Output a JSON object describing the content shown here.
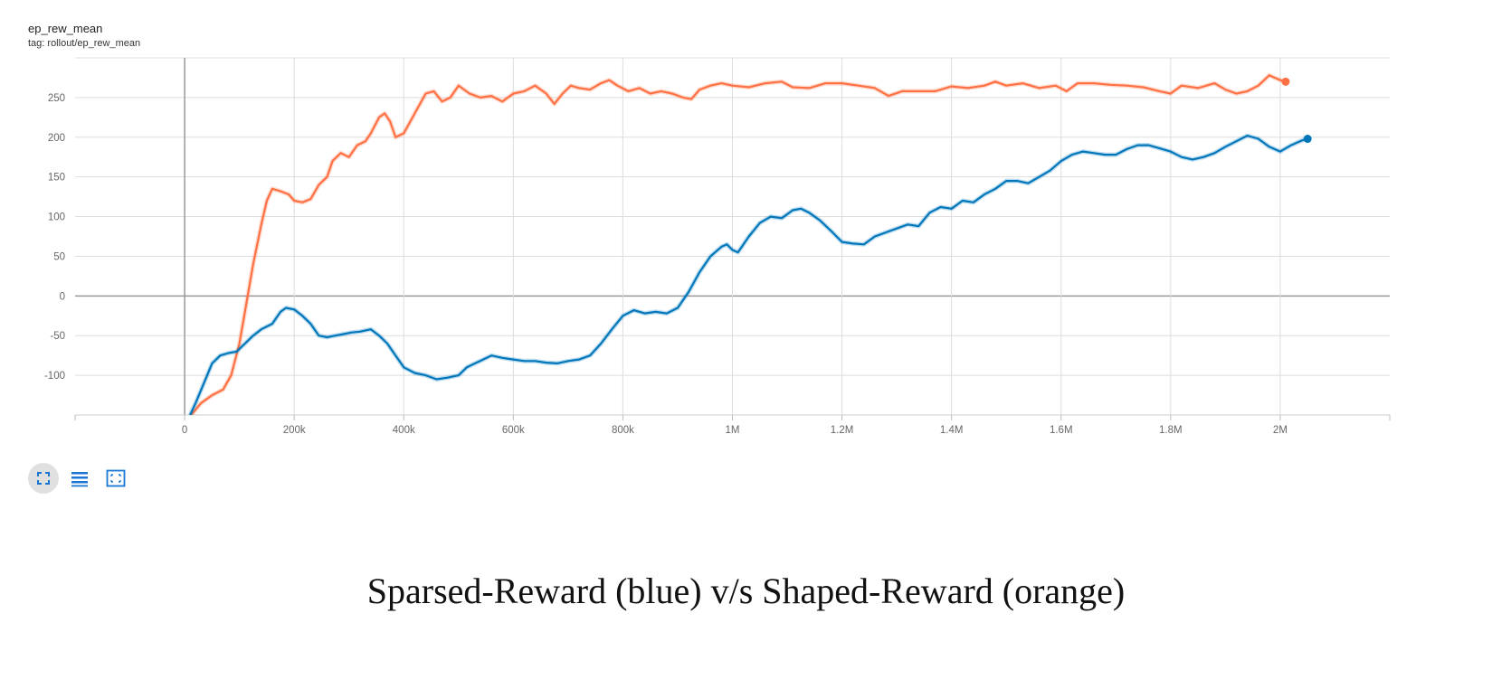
{
  "card": {
    "title": "ep_rew_mean",
    "tag": "tag: rollout/ep_rew_mean"
  },
  "toolbar": {
    "icons": [
      "fullscreen-icon",
      "list-icon",
      "fit-domain-icon"
    ]
  },
  "caption": "Sparsed-Reward (blue) v/s Shaped-Reward (orange)",
  "colors": {
    "orange": "#ff7043",
    "blue": "#0077bb",
    "grid": "#dddddd",
    "zero_axis": "#999999"
  },
  "chart_data": {
    "type": "line",
    "title": "",
    "xlabel": "",
    "ylabel": "",
    "xlim": [
      -200000,
      2200000
    ],
    "ylim": [
      -150,
      300
    ],
    "x_ticks": [
      {
        "value": 0,
        "label": "0"
      },
      {
        "value": 200000,
        "label": "200k"
      },
      {
        "value": 400000,
        "label": "400k"
      },
      {
        "value": 600000,
        "label": "600k"
      },
      {
        "value": 800000,
        "label": "800k"
      },
      {
        "value": 1000000,
        "label": "1M"
      },
      {
        "value": 1200000,
        "label": "1.2M"
      },
      {
        "value": 1400000,
        "label": "1.4M"
      },
      {
        "value": 1600000,
        "label": "1.6M"
      },
      {
        "value": 1800000,
        "label": "1.8M"
      },
      {
        "value": 2000000,
        "label": "2M"
      }
    ],
    "y_ticks": [
      {
        "value": 250,
        "label": "250"
      },
      {
        "value": 200,
        "label": "200"
      },
      {
        "value": 150,
        "label": "150"
      },
      {
        "value": 100,
        "label": "100"
      },
      {
        "value": 50,
        "label": "50"
      },
      {
        "value": 0,
        "label": "0"
      },
      {
        "value": -50,
        "label": "-50"
      },
      {
        "value": -100,
        "label": "-100"
      }
    ],
    "grid": true,
    "series": [
      {
        "color": "#ff7043",
        "points": [
          [
            12000,
            -150
          ],
          [
            30000,
            -135
          ],
          [
            50000,
            -125
          ],
          [
            70000,
            -118
          ],
          [
            85000,
            -100
          ],
          [
            100000,
            -60
          ],
          [
            110000,
            -20
          ],
          [
            125000,
            40
          ],
          [
            140000,
            90
          ],
          [
            150000,
            120
          ],
          [
            160000,
            135
          ],
          [
            175000,
            132
          ],
          [
            190000,
            128
          ],
          [
            200000,
            120
          ],
          [
            215000,
            118
          ],
          [
            230000,
            122
          ],
          [
            245000,
            140
          ],
          [
            260000,
            150
          ],
          [
            270000,
            170
          ],
          [
            285000,
            180
          ],
          [
            300000,
            175
          ],
          [
            315000,
            190
          ],
          [
            330000,
            195
          ],
          [
            340000,
            205
          ],
          [
            355000,
            225
          ],
          [
            365000,
            230
          ],
          [
            375000,
            220
          ],
          [
            385000,
            200
          ],
          [
            400000,
            205
          ],
          [
            420000,
            230
          ],
          [
            440000,
            255
          ],
          [
            455000,
            258
          ],
          [
            470000,
            245
          ],
          [
            485000,
            250
          ],
          [
            500000,
            265
          ],
          [
            520000,
            255
          ],
          [
            540000,
            250
          ],
          [
            560000,
            252
          ],
          [
            580000,
            245
          ],
          [
            600000,
            255
          ],
          [
            620000,
            258
          ],
          [
            640000,
            265
          ],
          [
            660000,
            255
          ],
          [
            675000,
            242
          ],
          [
            690000,
            255
          ],
          [
            705000,
            265
          ],
          [
            720000,
            262
          ],
          [
            740000,
            260
          ],
          [
            760000,
            268
          ],
          [
            775000,
            272
          ],
          [
            790000,
            265
          ],
          [
            810000,
            258
          ],
          [
            830000,
            262
          ],
          [
            850000,
            255
          ],
          [
            870000,
            258
          ],
          [
            890000,
            255
          ],
          [
            910000,
            250
          ],
          [
            925000,
            248
          ],
          [
            940000,
            260
          ],
          [
            960000,
            265
          ],
          [
            980000,
            268
          ],
          [
            1000000,
            265
          ],
          [
            1030000,
            263
          ],
          [
            1060000,
            268
          ],
          [
            1090000,
            270
          ],
          [
            1110000,
            263
          ],
          [
            1140000,
            262
          ],
          [
            1170000,
            268
          ],
          [
            1200000,
            268
          ],
          [
            1230000,
            265
          ],
          [
            1260000,
            262
          ],
          [
            1285000,
            252
          ],
          [
            1310000,
            258
          ],
          [
            1340000,
            258
          ],
          [
            1370000,
            258
          ],
          [
            1400000,
            264
          ],
          [
            1430000,
            262
          ],
          [
            1460000,
            265
          ],
          [
            1480000,
            270
          ],
          [
            1500000,
            265
          ],
          [
            1530000,
            268
          ],
          [
            1560000,
            262
          ],
          [
            1590000,
            265
          ],
          [
            1610000,
            258
          ],
          [
            1630000,
            268
          ],
          [
            1660000,
            268
          ],
          [
            1690000,
            266
          ],
          [
            1720000,
            265
          ],
          [
            1750000,
            263
          ],
          [
            1780000,
            258
          ],
          [
            1800000,
            255
          ],
          [
            1820000,
            265
          ],
          [
            1850000,
            262
          ],
          [
            1880000,
            268
          ],
          [
            1900000,
            260
          ],
          [
            1920000,
            255
          ],
          [
            1940000,
            258
          ],
          [
            1960000,
            265
          ],
          [
            1980000,
            278
          ],
          [
            2000000,
            272
          ],
          [
            2010000,
            270
          ]
        ]
      },
      {
        "color": "#0077bb",
        "points": [
          [
            10000,
            -150
          ],
          [
            20000,
            -135
          ],
          [
            35000,
            -110
          ],
          [
            50000,
            -85
          ],
          [
            65000,
            -75
          ],
          [
            80000,
            -72
          ],
          [
            95000,
            -70
          ],
          [
            110000,
            -60
          ],
          [
            125000,
            -50
          ],
          [
            140000,
            -42
          ],
          [
            160000,
            -35
          ],
          [
            175000,
            -20
          ],
          [
            185000,
            -15
          ],
          [
            200000,
            -17
          ],
          [
            215000,
            -25
          ],
          [
            230000,
            -35
          ],
          [
            245000,
            -50
          ],
          [
            260000,
            -52
          ],
          [
            275000,
            -50
          ],
          [
            290000,
            -48
          ],
          [
            305000,
            -46
          ],
          [
            320000,
            -45
          ],
          [
            340000,
            -42
          ],
          [
            355000,
            -50
          ],
          [
            370000,
            -60
          ],
          [
            385000,
            -75
          ],
          [
            400000,
            -90
          ],
          [
            420000,
            -97
          ],
          [
            440000,
            -100
          ],
          [
            460000,
            -105
          ],
          [
            480000,
            -103
          ],
          [
            500000,
            -100
          ],
          [
            515000,
            -90
          ],
          [
            530000,
            -85
          ],
          [
            545000,
            -80
          ],
          [
            560000,
            -75
          ],
          [
            580000,
            -78
          ],
          [
            600000,
            -80
          ],
          [
            620000,
            -82
          ],
          [
            640000,
            -82
          ],
          [
            660000,
            -84
          ],
          [
            680000,
            -85
          ],
          [
            700000,
            -82
          ],
          [
            720000,
            -80
          ],
          [
            740000,
            -75
          ],
          [
            760000,
            -60
          ],
          [
            780000,
            -42
          ],
          [
            800000,
            -25
          ],
          [
            820000,
            -18
          ],
          [
            840000,
            -22
          ],
          [
            860000,
            -20
          ],
          [
            880000,
            -22
          ],
          [
            900000,
            -15
          ],
          [
            920000,
            5
          ],
          [
            940000,
            30
          ],
          [
            960000,
            50
          ],
          [
            980000,
            62
          ],
          [
            990000,
            65
          ],
          [
            1000000,
            58
          ],
          [
            1010000,
            55
          ],
          [
            1030000,
            75
          ],
          [
            1050000,
            92
          ],
          [
            1070000,
            100
          ],
          [
            1090000,
            98
          ],
          [
            1110000,
            108
          ],
          [
            1125000,
            110
          ],
          [
            1140000,
            105
          ],
          [
            1160000,
            95
          ],
          [
            1180000,
            82
          ],
          [
            1200000,
            68
          ],
          [
            1220000,
            66
          ],
          [
            1240000,
            65
          ],
          [
            1260000,
            75
          ],
          [
            1280000,
            80
          ],
          [
            1300000,
            85
          ],
          [
            1320000,
            90
          ],
          [
            1340000,
            88
          ],
          [
            1360000,
            105
          ],
          [
            1380000,
            112
          ],
          [
            1400000,
            110
          ],
          [
            1420000,
            120
          ],
          [
            1440000,
            118
          ],
          [
            1460000,
            128
          ],
          [
            1480000,
            135
          ],
          [
            1500000,
            145
          ],
          [
            1520000,
            145
          ],
          [
            1540000,
            142
          ],
          [
            1560000,
            150
          ],
          [
            1580000,
            158
          ],
          [
            1600000,
            170
          ],
          [
            1620000,
            178
          ],
          [
            1640000,
            182
          ],
          [
            1660000,
            180
          ],
          [
            1680000,
            178
          ],
          [
            1700000,
            178
          ],
          [
            1720000,
            185
          ],
          [
            1740000,
            190
          ],
          [
            1760000,
            190
          ],
          [
            1780000,
            186
          ],
          [
            1800000,
            182
          ],
          [
            1820000,
            175
          ],
          [
            1840000,
            172
          ],
          [
            1860000,
            175
          ],
          [
            1880000,
            180
          ],
          [
            1900000,
            188
          ],
          [
            1920000,
            195
          ],
          [
            1940000,
            202
          ],
          [
            1960000,
            198
          ],
          [
            1980000,
            188
          ],
          [
            2000000,
            182
          ],
          [
            2020000,
            190
          ],
          [
            2040000,
            196
          ],
          [
            2050000,
            198
          ]
        ]
      }
    ]
  }
}
